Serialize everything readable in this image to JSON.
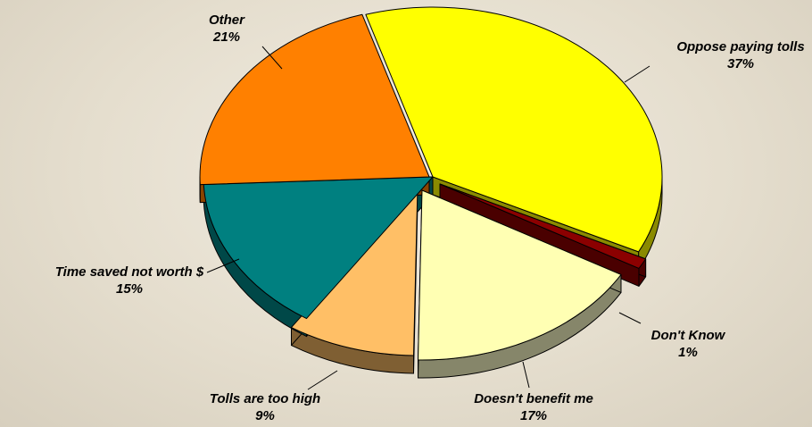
{
  "chart_data": {
    "type": "pie",
    "style": "3d-exploded-tilted",
    "legend": "none",
    "slices": [
      {
        "name": "Oppose paying tolls",
        "value": 37,
        "label": "37%",
        "color": "#ffff00",
        "side_color": "#8a8a00"
      },
      {
        "name": "Don't Know",
        "value": 1,
        "label": "1%",
        "color": "#8b0000",
        "side_color": "#4a0000"
      },
      {
        "name": "Doesn't benefit me",
        "value": 17,
        "label": "17%",
        "color": "#ffffb3",
        "side_color": "#86866a"
      },
      {
        "name": "Tolls are too high",
        "value": 9,
        "label": "9%",
        "color": "#ffbf66",
        "side_color": "#7f5f33"
      },
      {
        "name": "Time saved not worth $",
        "value": 15,
        "label": "15%",
        "color": "#008080",
        "side_color": "#004848"
      },
      {
        "name": "Other",
        "value": 21,
        "label": "21%",
        "color": "#ff8000",
        "side_color": "#8a4400"
      }
    ]
  }
}
